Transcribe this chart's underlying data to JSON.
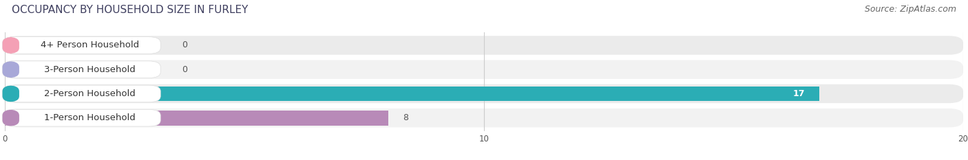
{
  "title": "OCCUPANCY BY HOUSEHOLD SIZE IN FURLEY",
  "source": "Source: ZipAtlas.com",
  "categories": [
    "1-Person Household",
    "2-Person Household",
    "3-Person Household",
    "4+ Person Household"
  ],
  "values": [
    8,
    17,
    0,
    0
  ],
  "bar_colors": [
    "#b88ab8",
    "#2badb5",
    "#a8a8d8",
    "#f4a0b5"
  ],
  "xlim": [
    0,
    20
  ],
  "xticks": [
    0,
    10,
    20
  ],
  "bar_height": 0.62,
  "background_color": "#ffffff",
  "title_fontsize": 11,
  "source_fontsize": 9,
  "label_fontsize": 9.5,
  "value_fontsize": 9
}
